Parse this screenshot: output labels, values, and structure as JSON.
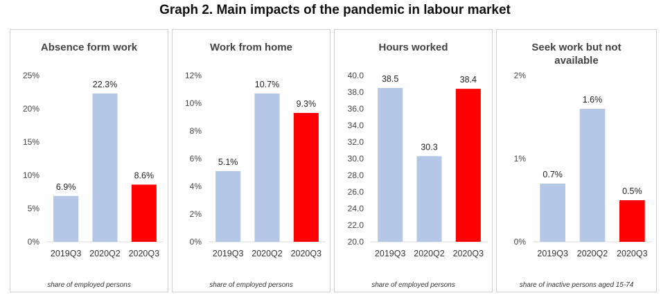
{
  "header": {
    "title": "Graph 2. Main impacts of the pandemic in labour market"
  },
  "chart_data": [
    {
      "type": "bar",
      "title": "Absence form work",
      "categories": [
        "2019Q3",
        "2020Q2",
        "2020Q3"
      ],
      "values": [
        6.9,
        22.3,
        8.6
      ],
      "value_labels": [
        "6.9%",
        "22.3%",
        "8.6%"
      ],
      "yticks": [
        0,
        5,
        10,
        15,
        20,
        25
      ],
      "ytick_labels": [
        "0%",
        "5%",
        "10%",
        "15%",
        "20%",
        "25%"
      ],
      "ylim": [
        0,
        25
      ],
      "bar_colors": [
        "#b4c7e7",
        "#b4c7e7",
        "#ff0000"
      ],
      "footnote": "share of employed persons"
    },
    {
      "type": "bar",
      "title": "Work from home",
      "categories": [
        "2019Q3",
        "2020Q2",
        "2020Q3"
      ],
      "values": [
        5.1,
        10.7,
        9.3
      ],
      "value_labels": [
        "5.1%",
        "10.7%",
        "9.3%"
      ],
      "yticks": [
        0,
        2,
        4,
        6,
        8,
        10,
        12
      ],
      "ytick_labels": [
        "0%",
        "2%",
        "4%",
        "6%",
        "8%",
        "10%",
        "12%"
      ],
      "ylim": [
        0,
        12
      ],
      "bar_colors": [
        "#b4c7e7",
        "#b4c7e7",
        "#ff0000"
      ],
      "footnote": "share of employed persons"
    },
    {
      "type": "bar",
      "title": "Hours worked",
      "categories": [
        "2019Q3",
        "2020Q2",
        "2020Q3"
      ],
      "values": [
        38.5,
        30.3,
        38.4
      ],
      "value_labels": [
        "38.5",
        "30.3",
        "38.4"
      ],
      "yticks": [
        20,
        22,
        24,
        26,
        28,
        30,
        32,
        34,
        36,
        38,
        40
      ],
      "ytick_labels": [
        "20.0",
        "22.0",
        "24.0",
        "26.0",
        "28.0",
        "30.0",
        "32.0",
        "34.0",
        "36.0",
        "38.0",
        "40.0"
      ],
      "ylim": [
        20,
        40
      ],
      "bar_colors": [
        "#b4c7e7",
        "#b4c7e7",
        "#ff0000"
      ],
      "footnote": "share of employed persons"
    },
    {
      "type": "bar",
      "title": "Seek work but not available",
      "categories": [
        "2019Q3",
        "2020Q2",
        "2020Q3"
      ],
      "values": [
        0.7,
        1.6,
        0.5
      ],
      "value_labels": [
        "0.7%",
        "1.6%",
        "0.5%"
      ],
      "yticks": [
        0,
        1,
        2
      ],
      "ytick_labels": [
        "0%",
        "1%",
        "2%"
      ],
      "ylim": [
        0,
        2
      ],
      "bar_colors": [
        "#b4c7e7",
        "#b4c7e7",
        "#ff0000"
      ],
      "footnote": "share of inactive persons aged 15-74"
    }
  ]
}
